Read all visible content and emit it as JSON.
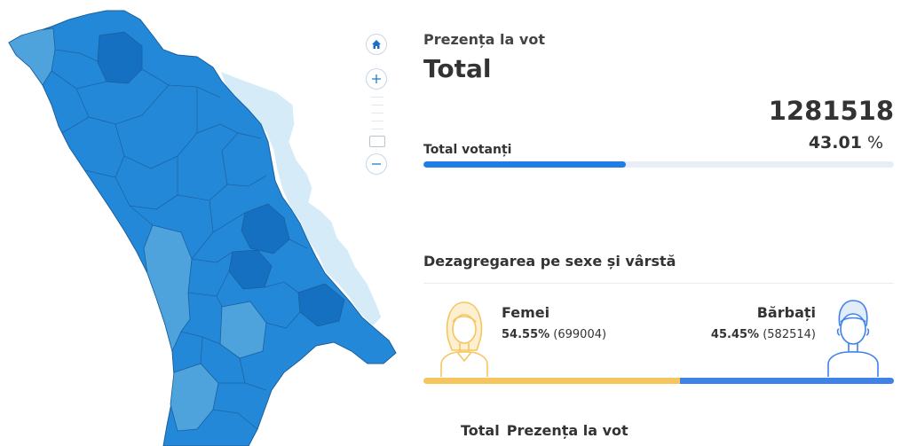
{
  "map": {
    "colors": {
      "dark": "#1670c2",
      "mid": "#2488d8",
      "light": "#4fa3dd",
      "pale": "#d6ebf8",
      "border": "#1a5f9e"
    }
  },
  "zoom": {
    "home_icon": "home-icon",
    "zoom_in_icon": "plus-icon",
    "zoom_out_icon": "minus-icon"
  },
  "panel": {
    "subtitle": "Prezența la vot",
    "title": "Total",
    "total_count": "1281518",
    "total_percent": "43.01",
    "percent_sign": "%",
    "total_label": "Total votanți",
    "total_fraction": 0.4301,
    "section_title": "Dezagregarea pe sexe și vârstă",
    "female": {
      "label": "Femei",
      "percent": "54.55%",
      "count": "(699004)",
      "fraction": 0.5455,
      "icon": "woman-icon",
      "color": "#f6c55e"
    },
    "male": {
      "label": "Bărbați",
      "percent": "45.45%",
      "count": "(582514)",
      "fraction": 0.4545,
      "icon": "man-icon",
      "color": "#3f82e8"
    },
    "bottom_left": "Total",
    "bottom_right": "Prezența la vot"
  }
}
